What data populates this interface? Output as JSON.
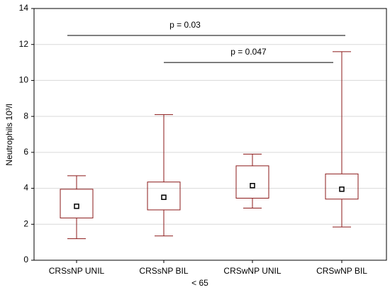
{
  "chart_data": {
    "type": "box",
    "categories": [
      "CRSsNP UNIL",
      "CRSsNP BIL",
      "CRSwNP UNIL",
      "CRSwNP BIL"
    ],
    "whisker_low": [
      1.2,
      1.35,
      2.9,
      1.85
    ],
    "q1": [
      2.35,
      2.8,
      3.45,
      3.4
    ],
    "center": [
      3.0,
      3.5,
      4.15,
      3.95
    ],
    "q3": [
      3.95,
      4.35,
      5.25,
      4.8
    ],
    "whisker_high": [
      4.7,
      8.1,
      5.9,
      11.6
    ],
    "color": "#8b1a1a",
    "ylabel": "Neutrophils 10³/l",
    "xlabel": "< 65",
    "ylim": [
      0,
      14
    ],
    "yticks": [
      0,
      2,
      4,
      6,
      8,
      10,
      12,
      14
    ],
    "grid": true,
    "annotations": [
      {
        "text": "p = 0.03",
        "y": 12.5
      },
      {
        "text": "p = 0.047",
        "y": 11
      }
    ]
  }
}
